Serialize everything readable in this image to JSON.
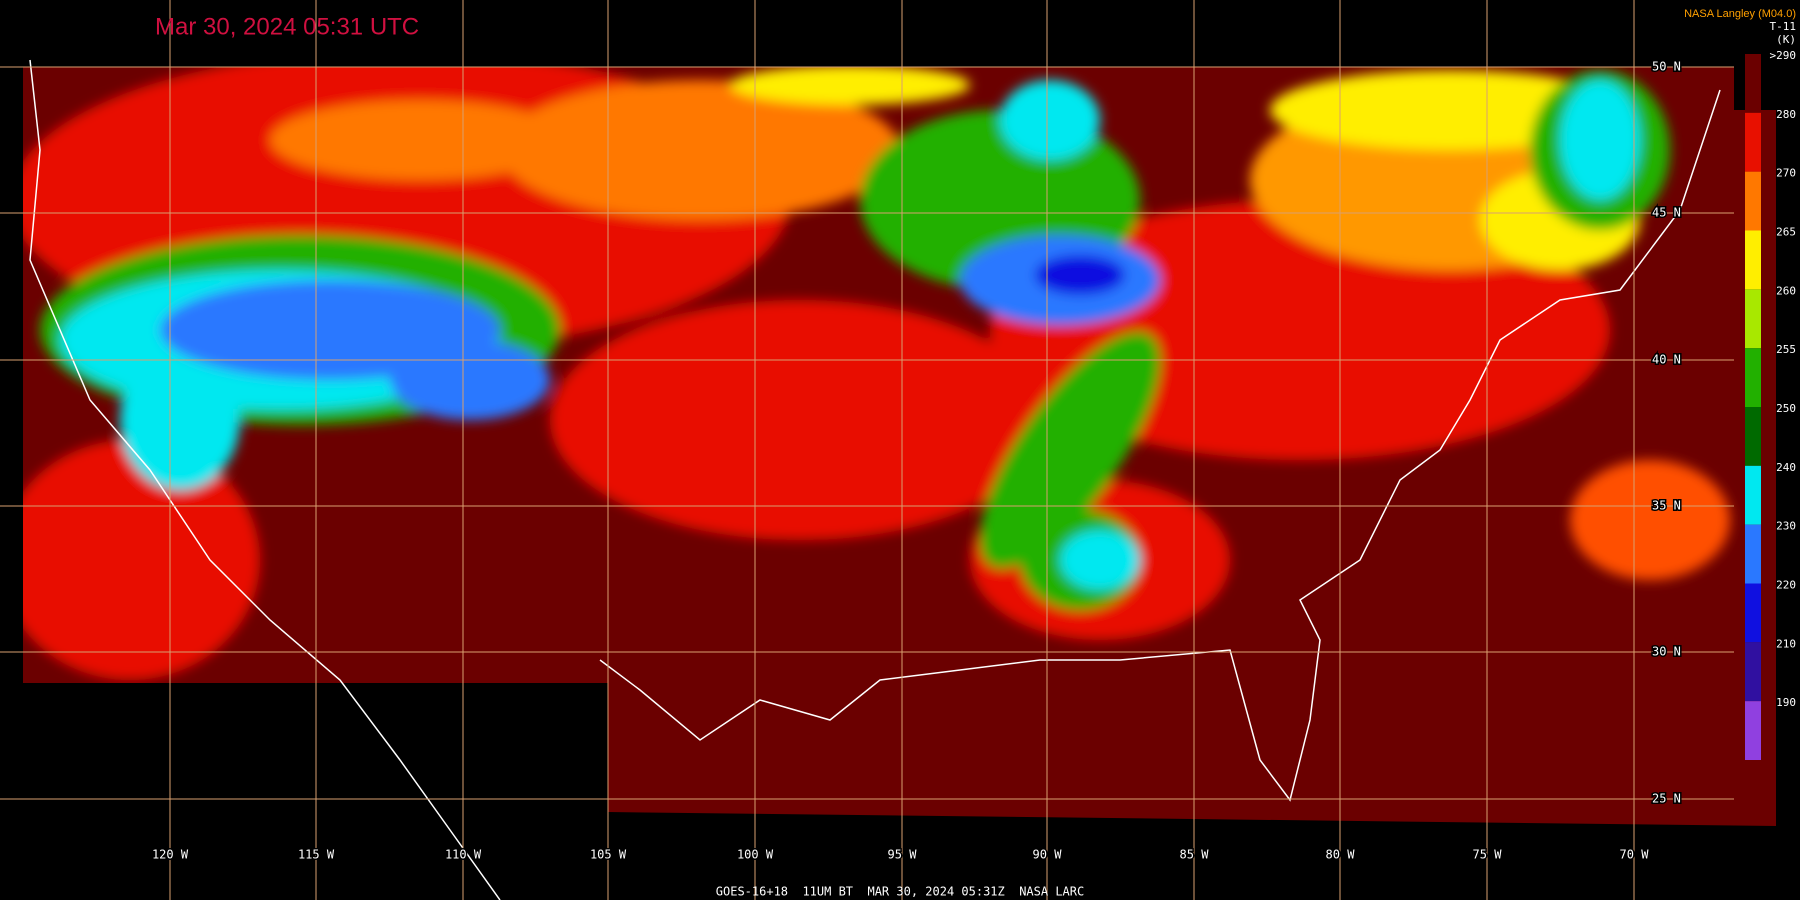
{
  "header": {
    "title": "Mar 30, 2024 05:31 UTC",
    "credit": "NASA Langley (M04.0)"
  },
  "colorbar": {
    "title": "T-11",
    "unit": "(K)",
    "labels": [
      ">290",
      "280",
      "270",
      "265",
      "260",
      "255",
      "250",
      "240",
      "230",
      "220",
      "210",
      "190"
    ]
  },
  "latitudes": [
    "50 N",
    "45 N",
    "40 N",
    "35 N",
    "30 N",
    "25 N"
  ],
  "longitudes": [
    "120 W",
    "115 W",
    "110 W",
    "105 W",
    "100 W",
    "95 W",
    "90 W",
    "85 W",
    "80 W",
    "75 W",
    "70 W"
  ],
  "footer": "GOES-16+18  11UM BT  MAR 30, 2024 05:31Z  NASA LARC"
}
